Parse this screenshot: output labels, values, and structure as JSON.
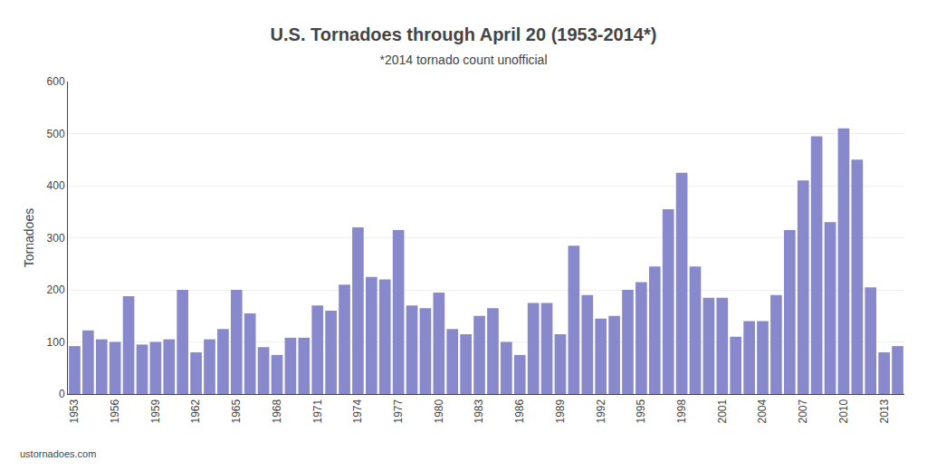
{
  "chart_data": {
    "type": "bar",
    "title": "U.S. Tornadoes through April 20 (1953-2014*)",
    "subtitle": "*2014 tornado count unofficial",
    "ylabel": "Tornadoes",
    "annotations": [
      "ustornadoes.com"
    ],
    "categories": [
      "1953",
      null,
      null,
      "1956",
      null,
      null,
      "1959",
      null,
      null,
      "1962",
      null,
      null,
      "1965",
      null,
      null,
      "1968",
      null,
      null,
      "1971",
      null,
      null,
      "1974",
      null,
      null,
      "1977",
      null,
      null,
      "1980",
      null,
      null,
      "1983",
      null,
      null,
      "1986",
      null,
      null,
      "1989",
      null,
      null,
      "1992",
      null,
      null,
      "1995",
      null,
      null,
      "1998",
      null,
      null,
      "2001",
      null,
      null,
      "2004",
      null,
      null,
      "2007",
      null,
      null,
      "2010",
      null,
      null,
      "2013",
      null
    ],
    "values": [
      92,
      122,
      105,
      100,
      188,
      95,
      100,
      105,
      200,
      80,
      105,
      125,
      200,
      155,
      90,
      75,
      108,
      108,
      170,
      160,
      210,
      320,
      225,
      220,
      315,
      170,
      165,
      195,
      125,
      115,
      150,
      165,
      100,
      75,
      175,
      175,
      115,
      285,
      190,
      145,
      150,
      200,
      215,
      245,
      355,
      425,
      245,
      185,
      185,
      110,
      140,
      140,
      190,
      315,
      410,
      495,
      330,
      510,
      450,
      205,
      80,
      92
    ],
    "color": "#8888cc",
    "ylim": [
      0,
      600
    ],
    "yticks": [
      0,
      100,
      200,
      300,
      400,
      500,
      600
    ],
    "grid": true
  }
}
